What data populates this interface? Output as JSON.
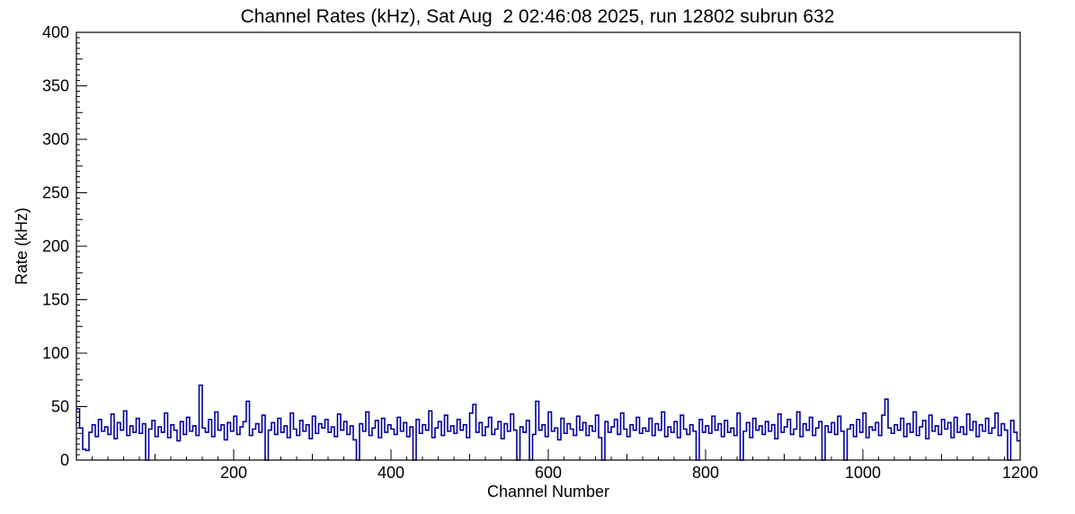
{
  "chart_data": {
    "type": "line",
    "title": "Channel Rates (kHz), Sat Aug  2 02:46:08 2025, run 12802 subrun 632",
    "xlabel": "Channel Number",
    "ylabel": "Rate (kHz)",
    "xlim": [
      0,
      1200
    ],
    "ylim": [
      0,
      400
    ],
    "x_major_ticks": [
      200,
      400,
      600,
      800,
      1000,
      1200
    ],
    "x_minor_step": 20,
    "y_major_ticks": [
      0,
      50,
      100,
      150,
      200,
      250,
      300,
      350,
      400
    ],
    "y_minor_step": 5,
    "legend": "none",
    "grid": false,
    "line_color": "#0000a0",
    "frame_color": "#000000",
    "background_color": "#ffffff",
    "bin_width_channels": 4,
    "x_start": 0,
    "values": [
      48,
      30,
      10,
      9,
      26,
      33,
      22,
      38,
      27,
      31,
      24,
      43,
      20,
      35,
      28,
      46,
      23,
      32,
      26,
      39,
      25,
      34,
      0,
      29,
      37,
      22,
      31,
      26,
      44,
      21,
      33,
      28,
      18,
      36,
      24,
      40,
      27,
      32,
      23,
      70,
      30,
      26,
      38,
      22,
      45,
      28,
      33,
      19,
      35,
      27,
      41,
      24,
      31,
      36,
      55,
      23,
      29,
      34,
      26,
      42,
      0,
      28,
      35,
      24,
      39,
      26,
      32,
      21,
      44,
      29,
      23,
      37,
      27,
      33,
      20,
      41,
      25,
      34,
      30,
      38,
      26,
      31,
      22,
      43,
      28,
      36,
      24,
      32,
      19,
      0,
      34,
      27,
      45,
      23,
      30,
      37,
      21,
      39,
      26,
      33,
      29,
      24,
      40,
      27,
      35,
      22,
      31,
      0,
      38,
      25,
      33,
      28,
      46,
      21,
      30,
      36,
      23,
      42,
      27,
      32,
      25,
      38,
      28,
      33,
      21,
      44,
      52,
      26,
      35,
      23,
      31,
      40,
      24,
      29,
      36,
      20,
      34,
      27,
      43,
      28,
      0,
      31,
      26,
      37,
      0,
      24,
      55,
      28,
      33,
      22,
      45,
      27,
      30,
      19,
      39,
      25,
      34,
      29,
      23,
      41,
      28,
      35,
      23,
      32,
      27,
      42,
      21,
      0,
      36,
      26,
      31,
      38,
      24,
      44,
      29,
      22,
      33,
      28,
      40,
      25,
      30,
      27,
      39,
      23,
      34,
      28,
      45,
      22,
      31,
      26,
      36,
      21,
      42,
      29,
      24,
      33,
      27,
      0,
      38,
      26,
      32,
      25,
      41,
      28,
      34,
      22,
      37,
      26,
      30,
      23,
      44,
      0,
      27,
      35,
      21,
      39,
      28,
      32,
      24,
      36,
      27,
      33,
      20,
      43,
      26,
      31,
      38,
      24,
      29,
      45,
      22,
      34,
      28,
      40,
      23,
      30,
      36,
      0,
      32,
      26,
      35,
      24,
      41,
      27,
      0,
      29,
      33,
      22,
      38,
      26,
      44,
      21,
      31,
      28,
      35,
      23,
      42,
      57,
      30,
      25,
      33,
      28,
      39,
      22,
      34,
      26,
      45,
      23,
      31,
      37,
      20,
      42,
      27,
      32,
      24,
      38,
      29,
      35,
      21,
      40,
      26,
      31,
      24,
      43,
      28,
      36,
      22,
      33,
      27,
      39,
      25,
      30,
      44,
      23,
      34,
      28,
      0,
      37,
      26,
      18
    ]
  }
}
